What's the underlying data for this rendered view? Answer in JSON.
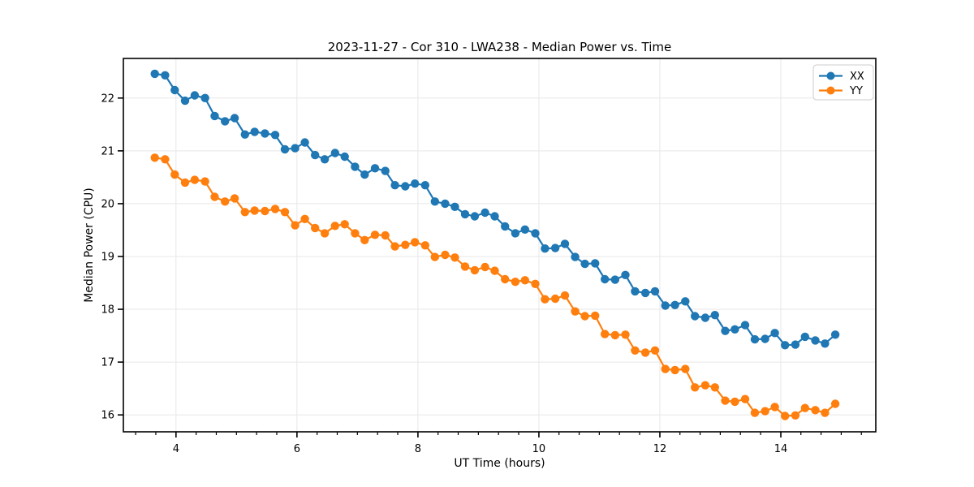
{
  "figure": {
    "title": "2023-11-27 - Cor 310 - LWA238 - Median Power vs. Time",
    "background": "#ffffff"
  },
  "chart_data": {
    "type": "line",
    "title": "2023-11-27 - Cor 310 - LWA238 - Median Power vs. Time",
    "xlabel": "UT Time (hours)",
    "ylabel": "Median Power (CPU)",
    "xlim": [
      3.13,
      15.57
    ],
    "ylim": [
      15.68,
      22.75
    ],
    "x_ticks": [
      4,
      6,
      8,
      10,
      12,
      14
    ],
    "y_ticks": [
      16,
      17,
      18,
      19,
      20,
      21,
      22
    ],
    "x_minor_tick_step": 0.3333,
    "grid": true,
    "grid_color": "#e7e7e7",
    "legend_position": "upper right",
    "marker": "o",
    "x": [
      3.65,
      3.82,
      3.98,
      4.15,
      4.31,
      4.48,
      4.64,
      4.81,
      4.97,
      5.14,
      5.3,
      5.47,
      5.64,
      5.8,
      5.97,
      6.13,
      6.3,
      6.46,
      6.63,
      6.79,
      6.96,
      7.12,
      7.29,
      7.46,
      7.62,
      7.79,
      7.95,
      8.12,
      8.28,
      8.45,
      8.61,
      8.78,
      8.94,
      9.11,
      9.27,
      9.44,
      9.61,
      9.77,
      9.94,
      10.1,
      10.27,
      10.43,
      10.6,
      10.76,
      10.93,
      11.09,
      11.26,
      11.43,
      11.59,
      11.76,
      11.92,
      12.09,
      12.25,
      12.42,
      12.58,
      12.75,
      12.91,
      13.08,
      13.24,
      13.41,
      13.57,
      13.74,
      13.9,
      14.07,
      14.24,
      14.4,
      14.57,
      14.73,
      14.9
    ],
    "series": [
      {
        "name": "XX",
        "color": "#1f77b4",
        "values": [
          22.46,
          22.43,
          22.15,
          21.95,
          22.05,
          22.0,
          21.66,
          21.56,
          21.62,
          21.31,
          21.36,
          21.33,
          21.3,
          21.03,
          21.05,
          21.16,
          20.92,
          20.84,
          20.96,
          20.89,
          20.7,
          20.55,
          20.67,
          20.62,
          20.35,
          20.33,
          20.38,
          20.35,
          20.04,
          20.0,
          19.94,
          19.8,
          19.76,
          19.83,
          19.76,
          19.57,
          19.44,
          19.51,
          19.44,
          19.15,
          19.16,
          19.24,
          18.99,
          18.86,
          18.87,
          18.57,
          18.56,
          18.65,
          18.34,
          18.31,
          18.34,
          18.07,
          18.08,
          18.15,
          17.87,
          17.84,
          17.89,
          17.59,
          17.62,
          17.7,
          17.43,
          17.44,
          17.55,
          17.32,
          17.33,
          17.48,
          17.41,
          17.35,
          17.52
        ]
      },
      {
        "name": "YY",
        "color": "#ff7f0e",
        "values": [
          20.87,
          20.84,
          20.55,
          20.4,
          20.45,
          20.42,
          20.13,
          20.04,
          20.1,
          19.84,
          19.87,
          19.86,
          19.9,
          19.84,
          19.59,
          19.71,
          19.54,
          19.44,
          19.58,
          19.61,
          19.44,
          19.31,
          19.41,
          19.4,
          19.19,
          19.22,
          19.27,
          19.21,
          18.99,
          19.03,
          18.98,
          18.81,
          18.74,
          18.8,
          18.73,
          18.57,
          18.52,
          18.55,
          18.48,
          18.19,
          18.2,
          18.26,
          17.96,
          17.87,
          17.88,
          17.53,
          17.51,
          17.52,
          17.22,
          17.18,
          17.22,
          16.87,
          16.85,
          16.87,
          16.52,
          16.56,
          16.52,
          16.27,
          16.25,
          16.3,
          16.04,
          16.07,
          16.15,
          15.98,
          15.99,
          16.13,
          16.09,
          16.04,
          16.21
        ]
      }
    ]
  }
}
